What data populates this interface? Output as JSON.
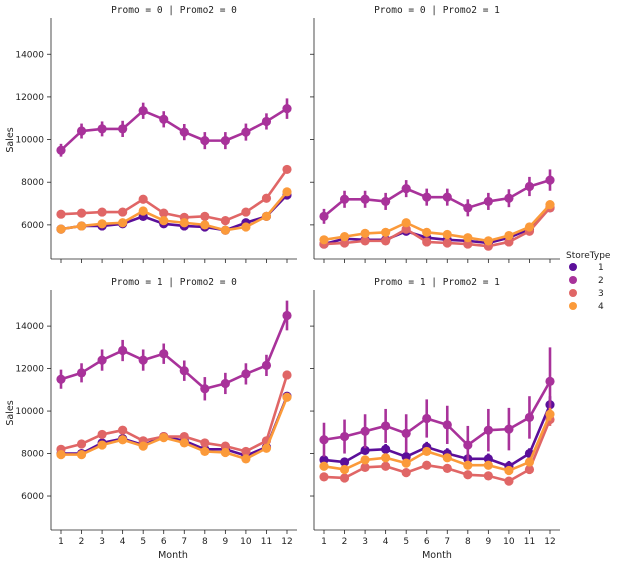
{
  "chart_data": {
    "type": "line",
    "facet_row": "Promo",
    "facet_col": "Promo2",
    "xlabel": "Month",
    "ylabel": "Sales",
    "x": [
      1,
      2,
      3,
      4,
      5,
      6,
      7,
      8,
      9,
      10,
      11,
      12
    ],
    "x_tick_labels": [
      "1",
      "2",
      "3",
      "4",
      "5",
      "6",
      "7",
      "8",
      "9",
      "10",
      "11",
      "12"
    ],
    "y_ticks": [
      6000,
      8000,
      10000,
      12000,
      14000
    ],
    "y_tick_labels": [
      "6000",
      "8000",
      "10000",
      "12000",
      "14000"
    ],
    "ylim": [
      4400,
      15700
    ],
    "legend": {
      "title": "StoreType",
      "placement": "right",
      "labels": [
        "1",
        "2",
        "3",
        "4"
      ]
    },
    "colors": {
      "1": "#5b0f9a",
      "2": "#a8329a",
      "3": "#e06666",
      "4": "#fb9a3a"
    },
    "panels": [
      {
        "title": "Promo = 0 | Promo2 = 0",
        "series": [
          {
            "name": "1",
            "values": [
              5800,
              5950,
              5950,
              6050,
              6400,
              6050,
              5950,
              5900,
              5750,
              6100,
              6400,
              7400
            ],
            "err": [
              120,
              120,
              120,
              120,
              130,
              120,
              120,
              120,
              120,
              120,
              130,
              150
            ]
          },
          {
            "name": "2",
            "values": [
              9500,
              10400,
              10500,
              10500,
              11350,
              10950,
              10350,
              9950,
              9950,
              10350,
              10850,
              11450
            ],
            "err": [
              300,
              350,
              350,
              380,
              380,
              380,
              380,
              400,
              400,
              400,
              380,
              480
            ]
          },
          {
            "name": "3",
            "values": [
              6500,
              6550,
              6600,
              6600,
              7200,
              6550,
              6350,
              6400,
              6200,
              6600,
              7250,
              8600
            ],
            "err": [
              120,
              120,
              120,
              120,
              130,
              120,
              120,
              120,
              120,
              120,
              130,
              180
            ]
          },
          {
            "name": "4",
            "values": [
              5800,
              5950,
              6050,
              6100,
              6650,
              6200,
              6100,
              6000,
              5750,
              5900,
              6400,
              7550
            ],
            "err": [
              120,
              120,
              120,
              120,
              130,
              120,
              120,
              120,
              120,
              120,
              130,
              150
            ]
          }
        ]
      },
      {
        "title": "Promo = 0 | Promo2 = 1",
        "series": [
          {
            "name": "1",
            "values": [
              5100,
              5350,
              5300,
              5300,
              5700,
              5400,
              5300,
              5250,
              5150,
              5400,
              5800,
              6800
            ],
            "err": [
              100,
              100,
              100,
              100,
              120,
              100,
              100,
              100,
              100,
              100,
              120,
              150
            ]
          },
          {
            "name": "2",
            "values": [
              6400,
              7200,
              7200,
              7100,
              7700,
              7300,
              7300,
              6800,
              7100,
              7250,
              7800,
              8100
            ],
            "err": [
              350,
              400,
              400,
              400,
              400,
              400,
              400,
              400,
              400,
              420,
              450,
              500
            ]
          },
          {
            "name": "3",
            "values": [
              5100,
              5150,
              5250,
              5250,
              5800,
              5200,
              5150,
              5100,
              5000,
              5200,
              5700,
              6800
            ],
            "err": [
              100,
              100,
              100,
              100,
              120,
              100,
              100,
              100,
              100,
              100,
              120,
              150
            ]
          },
          {
            "name": "4",
            "values": [
              5300,
              5450,
              5600,
              5650,
              6100,
              5650,
              5550,
              5400,
              5250,
              5500,
              5900,
              6950
            ],
            "err": [
              100,
              100,
              100,
              100,
              120,
              100,
              100,
              100,
              100,
              100,
              120,
              150
            ]
          }
        ]
      },
      {
        "title": "Promo = 1 | Promo2 = 0",
        "series": [
          {
            "name": "1",
            "values": [
              8000,
              8000,
              8500,
              8700,
              8400,
              8800,
              8600,
              8200,
              8200,
              7900,
              8300,
              10700
            ],
            "err": [
              130,
              130,
              130,
              130,
              130,
              130,
              130,
              130,
              130,
              130,
              140,
              180
            ]
          },
          {
            "name": "2",
            "values": [
              11500,
              11800,
              12400,
              12850,
              12400,
              12700,
              11900,
              11050,
              11300,
              11750,
              12150,
              14500
            ],
            "err": [
              450,
              450,
              500,
              500,
              500,
              480,
              480,
              550,
              500,
              500,
              500,
              700
            ]
          },
          {
            "name": "3",
            "values": [
              8200,
              8450,
              8900,
              9100,
              8600,
              8800,
              8800,
              8500,
              8350,
              8100,
              8600,
              11700
            ],
            "err": [
              130,
              130,
              130,
              130,
              130,
              130,
              130,
              130,
              130,
              130,
              140,
              200
            ]
          },
          {
            "name": "4",
            "values": [
              7950,
              7950,
              8400,
              8650,
              8350,
              8750,
              8500,
              8100,
              8050,
              7750,
              8250,
              10650
            ],
            "err": [
              130,
              130,
              130,
              130,
              130,
              130,
              130,
              130,
              130,
              130,
              140,
              180
            ]
          }
        ]
      },
      {
        "title": "Promo = 1 | Promo2 = 1",
        "series": [
          {
            "name": "1",
            "values": [
              7700,
              7600,
              8150,
              8200,
              7850,
              8300,
              8000,
              7750,
              7750,
              7400,
              8000,
              10300
            ],
            "err": [
              200,
              200,
              200,
              250,
              250,
              250,
              250,
              250,
              250,
              250,
              250,
              400
            ]
          },
          {
            "name": "2",
            "values": [
              8650,
              8800,
              9050,
              9300,
              8950,
              9650,
              9350,
              8400,
              9100,
              9150,
              9700,
              11400
            ],
            "err": [
              800,
              800,
              800,
              800,
              900,
              900,
              900,
              900,
              1000,
              1000,
              1000,
              1600
            ]
          },
          {
            "name": "3",
            "values": [
              6900,
              6850,
              7350,
              7400,
              7100,
              7450,
              7300,
              7000,
              6950,
              6700,
              7250,
              9600
            ],
            "err": [
              150,
              150,
              150,
              150,
              150,
              150,
              150,
              150,
              150,
              150,
              150,
              300
            ]
          },
          {
            "name": "4",
            "values": [
              7400,
              7250,
              7700,
              7800,
              7550,
              8100,
              7800,
              7450,
              7450,
              7200,
              7600,
              9850
            ],
            "err": [
              180,
              180,
              180,
              180,
              180,
              180,
              180,
              180,
              180,
              180,
              180,
              300
            ]
          }
        ]
      }
    ]
  }
}
